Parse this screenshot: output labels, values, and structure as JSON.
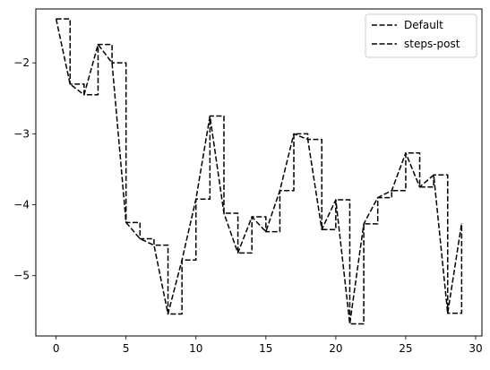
{
  "chart_data": {
    "type": "line",
    "title": "",
    "xlabel": "",
    "ylabel": "",
    "xlim": [
      -1.45,
      30.45
    ],
    "ylim": [
      -5.85,
      -1.24
    ],
    "x_ticks": [
      0,
      5,
      10,
      15,
      20,
      25,
      30
    ],
    "x_tick_labels": [
      "0",
      "5",
      "10",
      "15",
      "20",
      "25",
      "30"
    ],
    "y_ticks": [
      -2,
      -3,
      -4,
      -5
    ],
    "y_tick_labels": [
      "−2",
      "−3",
      "−4",
      "−5"
    ],
    "grid": false,
    "legend_position": "top-right",
    "line_color": "#000000",
    "x": [
      0,
      1,
      2,
      3,
      4,
      5,
      6,
      7,
      8,
      9,
      10,
      11,
      12,
      13,
      14,
      15,
      16,
      17,
      18,
      19,
      20,
      21,
      22,
      23,
      24,
      25,
      26,
      27,
      28,
      29
    ],
    "values": [
      -1.38,
      -2.3,
      -2.45,
      -1.74,
      -2.0,
      -4.25,
      -4.48,
      -4.57,
      -5.54,
      -4.78,
      -3.92,
      -2.75,
      -4.12,
      -4.68,
      -4.17,
      -4.38,
      -3.8,
      -3.0,
      -3.08,
      -4.35,
      -3.93,
      -5.68,
      -4.27,
      -3.9,
      -3.8,
      -3.27,
      -3.75,
      -3.58,
      -5.53,
      -4.26
    ],
    "series": [
      {
        "name": "Default",
        "drawstyle": "default"
      },
      {
        "name": "steps-post",
        "drawstyle": "steps-post"
      }
    ]
  }
}
